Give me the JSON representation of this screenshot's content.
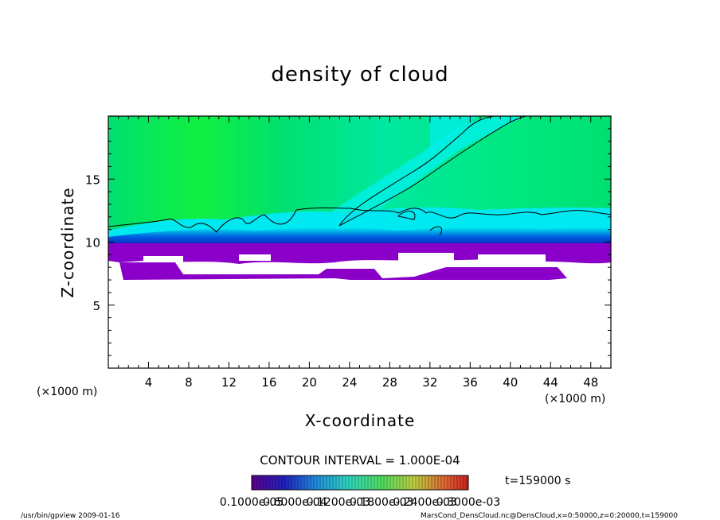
{
  "chart_data": {
    "type": "heatmap",
    "title": "density of cloud",
    "xlabel": "X-coordinate",
    "ylabel": "Z-coordinate",
    "x_unit": "(×1000 m)",
    "y_unit": "(×1000 m)",
    "xlim": [
      0,
      50
    ],
    "ylim": [
      0,
      20
    ],
    "x_ticks": [
      "4",
      "8",
      "12",
      "16",
      "20",
      "24",
      "28",
      "32",
      "36",
      "40",
      "44",
      "48"
    ],
    "y_ticks": [
      "5",
      "10",
      "15"
    ],
    "contour_interval": "CONTOUR INTERVAL = 1.000E-04",
    "time": "t=159000  s",
    "colorbar_labels": [
      "0.1000e-05",
      "0.6000e-04",
      "0.1200e-03",
      "0.1800e-03",
      "0.2400e-03",
      "0.3000e-03"
    ],
    "colors": {
      "low": "#8a00c8",
      "deep_blue": "#0010d0",
      "cyan": "#00f0f0",
      "green": "#00e060",
      "bright_green": "#20ff30"
    }
  },
  "footer": {
    "left": "/usr/bin/gpview  2009-01-16",
    "right": "MarsCond_DensCloud.nc@DensCloud,x=0:50000,z=0:20000,t=159000"
  }
}
